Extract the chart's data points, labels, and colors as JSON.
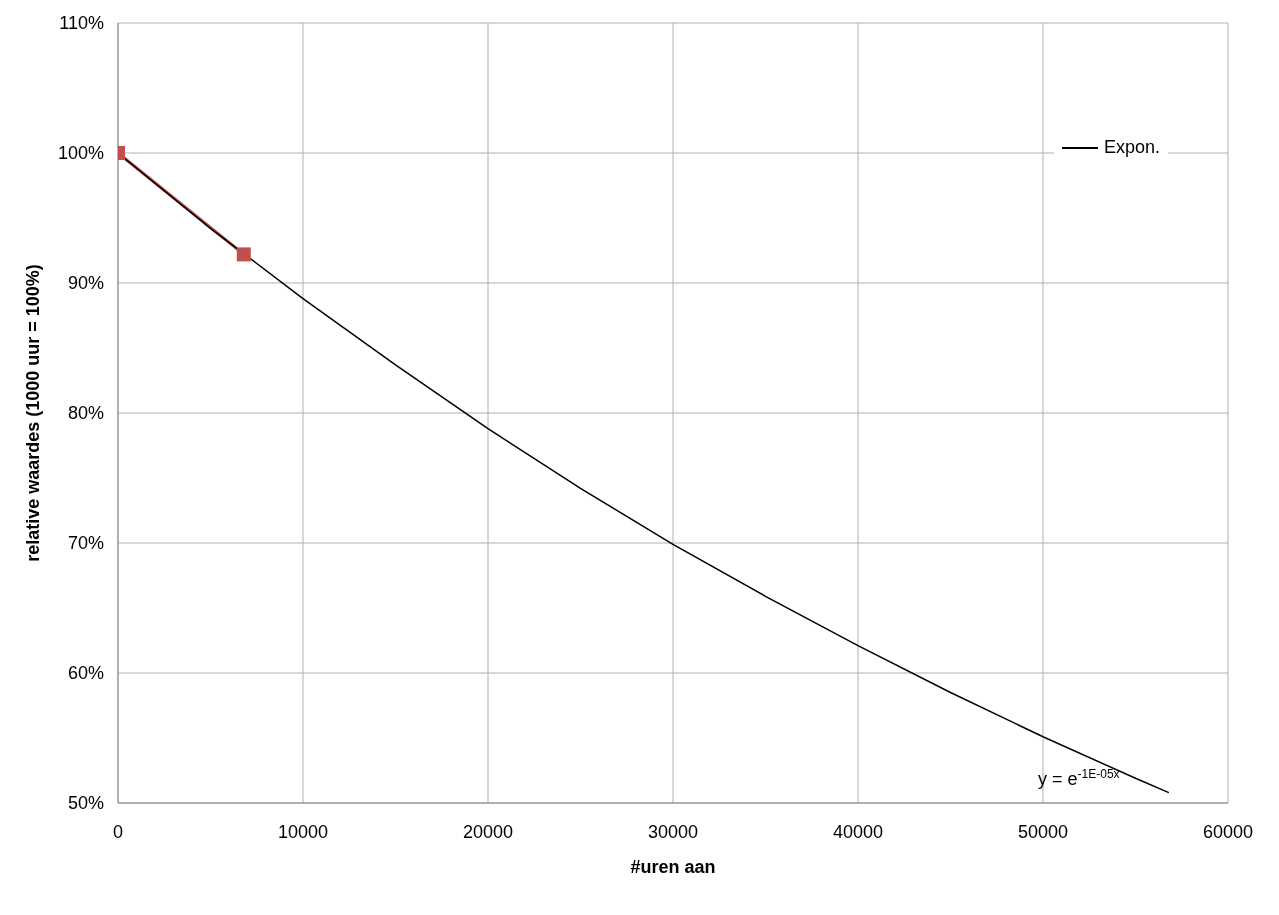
{
  "chart_data": {
    "type": "line",
    "xlabel": "#uren aan",
    "ylabel": "relative waardes (1000 uur = 100%)",
    "series": [
      {
        "color": "#c0504d",
        "marker": "square",
        "x": [
          0,
          6800
        ],
        "values": [
          100,
          92.2
        ]
      },
      {
        "name": "Expon.",
        "color": "#000000",
        "marker": "none",
        "x": [
          0,
          5000,
          10000,
          15000,
          20000,
          25000,
          30000,
          35000,
          40000,
          45000,
          50000,
          55000,
          56800
        ],
        "values": [
          100,
          94.2,
          88.8,
          83.7,
          78.8,
          74.2,
          69.9,
          65.9,
          62.1,
          58.5,
          55.1,
          51.9,
          50.8
        ]
      }
    ],
    "xlim": [
      0,
      60000
    ],
    "xticks": [
      0,
      10000,
      20000,
      30000,
      40000,
      50000,
      60000
    ],
    "ylim": [
      50,
      110
    ],
    "yticks": [
      {
        "value": 50,
        "label": "50%"
      },
      {
        "value": 60,
        "label": "60%"
      },
      {
        "value": 70,
        "label": "70%"
      },
      {
        "value": 80,
        "label": "80%"
      },
      {
        "value": 90,
        "label": "90%"
      },
      {
        "value": 100,
        "label": "100%"
      },
      {
        "value": 110,
        "label": "110%"
      }
    ],
    "grid": true,
    "legend": "top right",
    "annotations": [
      "y = e$^{-1E-05x}$"
    ]
  }
}
